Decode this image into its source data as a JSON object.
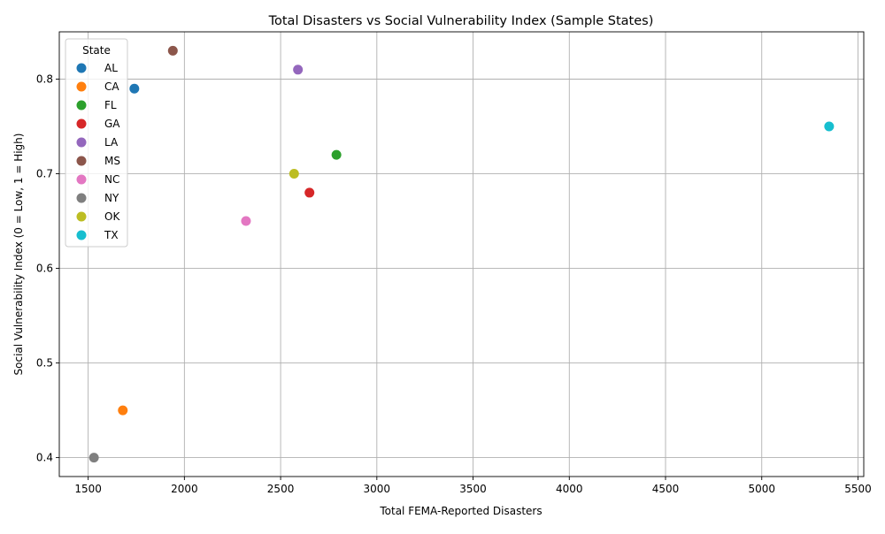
{
  "chart_data": {
    "type": "scatter",
    "title": "Total Disasters vs Social Vulnerability Index (Sample States)",
    "xlabel": "Total FEMA-Reported Disasters",
    "ylabel": "Social Vulnerability Index (0 = Low, 1 = High)",
    "xlim": [
      1350,
      5530
    ],
    "ylim": [
      0.38,
      0.85
    ],
    "xticks": [
      1500,
      2000,
      2500,
      3000,
      3500,
      4000,
      4500,
      5000,
      5500
    ],
    "yticks": [
      0.4,
      0.5,
      0.6,
      0.7,
      0.8
    ],
    "grid": true,
    "legend": {
      "title": "State",
      "placement": "top-left"
    },
    "series": [
      {
        "name": "AL",
        "color": "#1f77b4",
        "x": [
          1740
        ],
        "y": [
          0.79
        ]
      },
      {
        "name": "CA",
        "color": "#ff7f0e",
        "x": [
          1680
        ],
        "y": [
          0.45
        ]
      },
      {
        "name": "FL",
        "color": "#2ca02c",
        "x": [
          2790
        ],
        "y": [
          0.72
        ]
      },
      {
        "name": "GA",
        "color": "#d62728",
        "x": [
          2650
        ],
        "y": [
          0.68
        ]
      },
      {
        "name": "LA",
        "color": "#9467bd",
        "x": [
          2590
        ],
        "y": [
          0.81
        ]
      },
      {
        "name": "MS",
        "color": "#8c564b",
        "x": [
          1940
        ],
        "y": [
          0.83
        ]
      },
      {
        "name": "NC",
        "color": "#e377c2",
        "x": [
          2320
        ],
        "y": [
          0.65
        ]
      },
      {
        "name": "NY",
        "color": "#7f7f7f",
        "x": [
          1530
        ],
        "y": [
          0.4
        ]
      },
      {
        "name": "OK",
        "color": "#bcbd22",
        "x": [
          2570
        ],
        "y": [
          0.7
        ]
      },
      {
        "name": "TX",
        "color": "#17becf",
        "x": [
          5350
        ],
        "y": [
          0.75
        ]
      }
    ]
  }
}
